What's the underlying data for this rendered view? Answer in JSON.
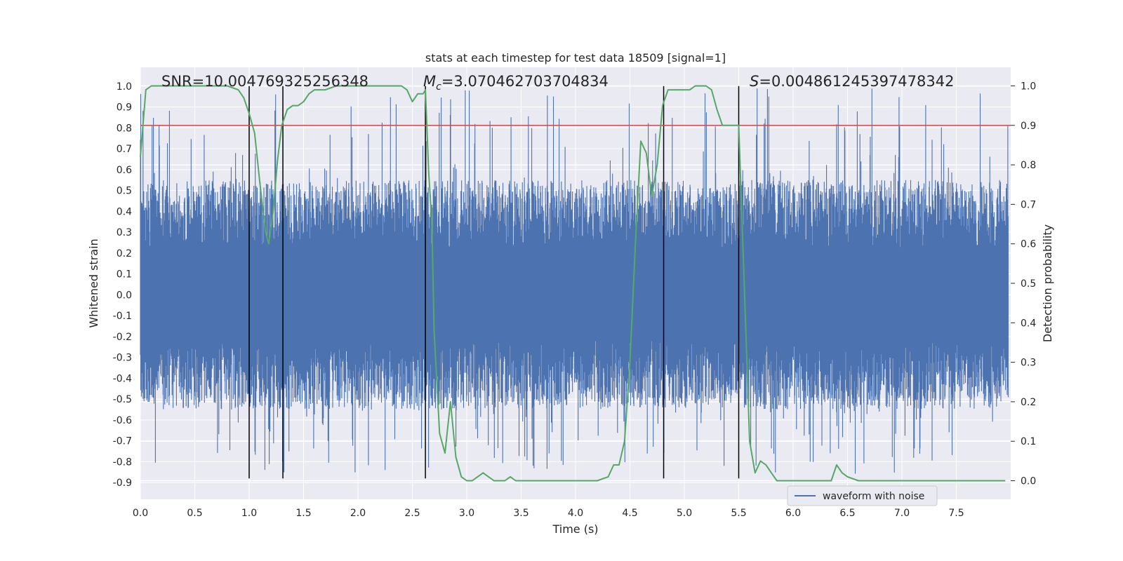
{
  "chart_data": {
    "type": "line",
    "title": "stats at each timestep for test data 18509 [signal=1]",
    "xlabel": "Time (s)",
    "ylabel": "Whitened strain",
    "y2label": "Detection probability",
    "xlim": [
      0.0,
      8.0
    ],
    "ylim": [
      -0.98,
      1.09
    ],
    "y2lim": [
      -0.047,
      1.047
    ],
    "xticks": [
      "0.0",
      "0.5",
      "1.0",
      "1.5",
      "2.0",
      "2.5",
      "3.0",
      "3.5",
      "4.0",
      "4.5",
      "5.0",
      "5.5",
      "6.0",
      "6.5",
      "7.0",
      "7.5"
    ],
    "yticks": [
      "1.0",
      "0.9",
      "0.8",
      "0.7",
      "0.6",
      "0.5",
      "0.4",
      "0.3",
      "0.2",
      "0.1",
      "0.0",
      "-0.1",
      "-0.2",
      "-0.3",
      "-0.4",
      "-0.5",
      "-0.6",
      "-0.7",
      "-0.8",
      "-0.9"
    ],
    "y2ticks": [
      "1.0",
      "0.9",
      "0.8",
      "0.7",
      "0.6",
      "0.5",
      "0.4",
      "0.3",
      "0.2",
      "0.1",
      "0.0"
    ],
    "grid": true,
    "legend_position": "lower-right",
    "annotations": {
      "snr": "SNR=10.004769325256348",
      "mc_symbol": "M",
      "mc_sub": "c",
      "mc_value": "=3.070462703704834",
      "s_symbol": "S",
      "s_value": "=0.004861245397478342"
    },
    "series": [
      {
        "name": "waveform with noise",
        "axis": "left",
        "color": "#4c72b0",
        "style": "noise band",
        "envelope_typical": [
          -0.55,
          0.55
        ],
        "envelope_extreme": [
          -0.86,
          0.99
        ]
      },
      {
        "axis": "right",
        "color": "#55a868",
        "x": [
          0.0,
          0.05,
          0.1,
          0.2,
          0.3,
          0.4,
          0.5,
          0.6,
          0.7,
          0.8,
          0.9,
          0.95,
          1.0,
          1.05,
          1.1,
          1.15,
          1.18,
          1.22,
          1.26,
          1.3,
          1.35,
          1.4,
          1.45,
          1.5,
          1.55,
          1.6,
          1.7,
          1.8,
          1.9,
          2.0,
          2.1,
          2.2,
          2.3,
          2.4,
          2.45,
          2.5,
          2.55,
          2.6,
          2.62,
          2.65,
          2.68,
          2.7,
          2.75,
          2.8,
          2.85,
          2.9,
          2.95,
          3.0,
          3.05,
          3.1,
          3.15,
          3.2,
          3.25,
          3.3,
          3.35,
          3.4,
          3.45,
          3.5,
          3.6,
          3.7,
          3.8,
          3.9,
          4.0,
          4.1,
          4.2,
          4.3,
          4.35,
          4.4,
          4.45,
          4.5,
          4.55,
          4.6,
          4.65,
          4.7,
          4.75,
          4.8,
          4.85,
          4.9,
          4.95,
          5.0,
          5.05,
          5.1,
          5.15,
          5.2,
          5.25,
          5.3,
          5.35,
          5.4,
          5.45,
          5.5,
          5.55,
          5.6,
          5.65,
          5.7,
          5.75,
          5.8,
          5.85,
          5.9,
          6.0,
          6.2,
          6.35,
          6.4,
          6.45,
          6.5,
          6.6,
          6.8,
          7.0,
          7.2,
          7.4,
          7.6,
          7.8,
          7.95
        ],
        "y": [
          0.82,
          0.99,
          1.0,
          1.0,
          1.0,
          1.0,
          1.0,
          1.0,
          1.0,
          1.0,
          0.99,
          0.97,
          0.93,
          0.88,
          0.75,
          0.63,
          0.6,
          0.68,
          0.81,
          0.9,
          0.94,
          0.95,
          0.95,
          0.96,
          0.98,
          0.99,
          0.99,
          1.0,
          1.0,
          1.0,
          1.0,
          1.0,
          1.0,
          1.0,
          0.99,
          0.96,
          0.98,
          0.98,
          0.99,
          0.78,
          0.65,
          0.38,
          0.12,
          0.07,
          0.2,
          0.06,
          0.01,
          0.0,
          0.0,
          0.01,
          0.02,
          0.01,
          0.0,
          0.0,
          0.0,
          0.01,
          0.0,
          0.0,
          0.0,
          0.0,
          0.0,
          0.0,
          0.0,
          0.0,
          0.0,
          0.01,
          0.04,
          0.04,
          0.1,
          0.3,
          0.6,
          0.86,
          0.83,
          0.72,
          0.8,
          0.95,
          0.99,
          0.99,
          0.99,
          0.99,
          0.99,
          1.0,
          1.0,
          1.0,
          0.99,
          0.94,
          0.9,
          0.9,
          0.9,
          0.9,
          0.5,
          0.1,
          0.02,
          0.05,
          0.04,
          0.02,
          0.0,
          0.0,
          0.0,
          0.0,
          0.0,
          0.04,
          0.02,
          0.01,
          0.0,
          0.0,
          0.0,
          0.0,
          0.0,
          0.0,
          0.0,
          0.0
        ]
      },
      {
        "axis": "right",
        "color": "#c44e52",
        "style": "threshold line",
        "y": 0.9
      },
      {
        "axis": "left",
        "color": "#000000",
        "style": "vertical markers",
        "x": [
          1.0,
          1.31,
          2.62,
          4.81,
          5.5
        ],
        "from": -0.88,
        "to": 1.0
      }
    ],
    "legend": [
      "waveform with noise"
    ]
  }
}
